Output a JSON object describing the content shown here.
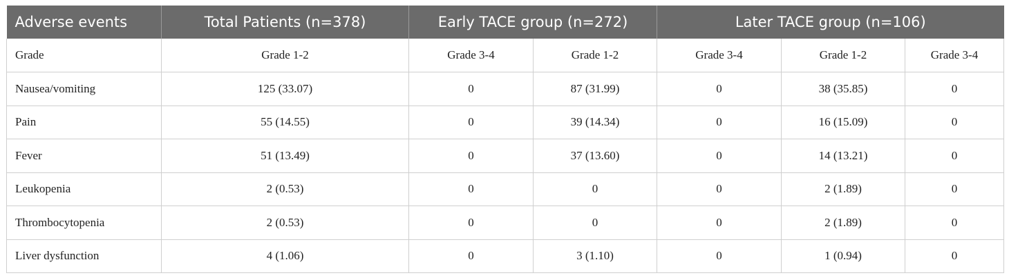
{
  "header": {
    "adverse_events": "Adverse events",
    "total": "Total Patients (n=378)",
    "early": "Early TACE group (n=272)",
    "later": "Later TACE group (n=106)"
  },
  "grade_row": {
    "label": "Grade",
    "cells": [
      "Grade 1-2",
      "Grade 3-4",
      "Grade 1-2",
      "Grade 3-4",
      "Grade 1-2",
      "Grade 3-4"
    ]
  },
  "rows": [
    {
      "event": "Nausea/vomiting",
      "cells": [
        "125 (33.07)",
        "0",
        "87 (31.99)",
        "0",
        "38 (35.85)",
        "0"
      ]
    },
    {
      "event": "Pain",
      "cells": [
        "55 (14.55)",
        "0",
        "39 (14.34)",
        "0",
        "16 (15.09)",
        "0"
      ]
    },
    {
      "event": "Fever",
      "cells": [
        "51 (13.49)",
        "0",
        "37 (13.60)",
        "0",
        "14 (13.21)",
        "0"
      ]
    },
    {
      "event": "Leukopenia",
      "cells": [
        "2 (0.53)",
        "0",
        "0",
        "0",
        "2 (1.89)",
        "0"
      ]
    },
    {
      "event": "Thrombocytopenia",
      "cells": [
        "2 (0.53)",
        "0",
        "0",
        "0",
        "2 (1.89)",
        "0"
      ]
    },
    {
      "event": "Liver dysfunction",
      "cells": [
        "4 (1.06)",
        "0",
        "3 (1.10)",
        "0",
        "1 (0.94)",
        "0"
      ]
    }
  ]
}
